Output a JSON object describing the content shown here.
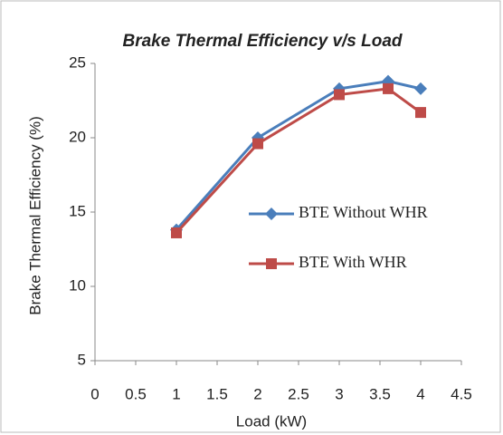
{
  "chart_data": {
    "type": "line",
    "title": "Brake Thermal Efficiency v/s Load",
    "x_label": "Load (kW)",
    "y_label": "Brake Thermal Efficiency (%)",
    "x": [
      1,
      2,
      3,
      3.6,
      4
    ],
    "series": [
      {
        "name": "BTE Without WHR",
        "color": "#4a7ebb",
        "marker": "diamond",
        "values": [
          13.8,
          20.0,
          23.3,
          23.8,
          23.3
        ]
      },
      {
        "name": "BTE With WHR",
        "color": "#be4b48",
        "marker": "square",
        "values": [
          13.6,
          19.6,
          22.9,
          23.3,
          21.7
        ]
      }
    ],
    "xlim": [
      0,
      4.5
    ],
    "xticks": [
      0,
      0.5,
      1,
      1.5,
      2,
      2.5,
      3,
      3.5,
      4,
      4.5
    ],
    "ylim": [
      5,
      25
    ],
    "yticks": [
      5,
      10,
      15,
      20,
      25
    ],
    "grid": false,
    "legend": "right"
  }
}
